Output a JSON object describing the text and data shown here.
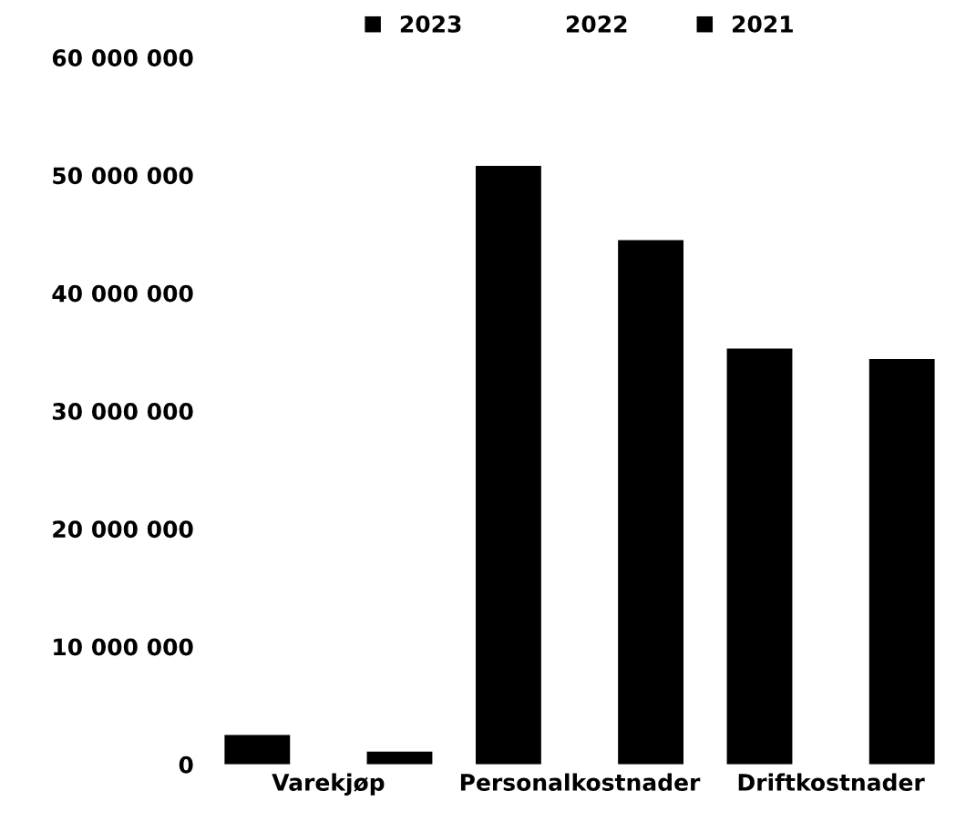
{
  "chart_data": {
    "type": "bar",
    "categories": [
      "Varekjøp",
      "Personalkostnader",
      "Driftkostnader"
    ],
    "series": [
      {
        "name": "2023",
        "color": "#000000",
        "values": [
          2500000,
          50800000,
          35300000
        ]
      },
      {
        "name": "2022",
        "values": [
          null,
          null,
          null
        ]
      },
      {
        "name": "2021",
        "color": "#000000",
        "values": [
          1100000,
          44500000,
          34400000
        ]
      }
    ],
    "ylim": [
      0,
      60000000
    ],
    "yticks": [
      {
        "value": 0,
        "label": "0"
      },
      {
        "value": 10000000,
        "label": "10 000 000"
      },
      {
        "value": 20000000,
        "label": "20 000 000"
      },
      {
        "value": 30000000,
        "label": "30 000 000"
      },
      {
        "value": 40000000,
        "label": "40 000 000"
      },
      {
        "value": 50000000,
        "label": "50 000 000"
      },
      {
        "value": 60000000,
        "label": "60 000 000"
      }
    ],
    "grid": false,
    "legend": "top"
  }
}
